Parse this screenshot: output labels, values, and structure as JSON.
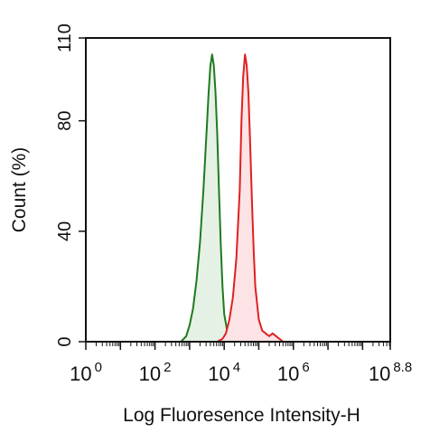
{
  "chart_data": {
    "type": "area",
    "xlabel": "Log Fluoresence Intensity-H",
    "ylabel": "Count  (%)",
    "x_scale": "log10",
    "xlim": [
      0,
      8.8
    ],
    "ylim": [
      0,
      110
    ],
    "x_ticks": [
      {
        "value": 0,
        "base": "10",
        "exp": "0"
      },
      {
        "value": 2,
        "base": "10",
        "exp": "2"
      },
      {
        "value": 4,
        "base": "10",
        "exp": "4"
      },
      {
        "value": 6,
        "base": "10",
        "exp": "6"
      },
      {
        "value": 8.8,
        "base": "10",
        "exp": "8.8"
      }
    ],
    "y_ticks": [
      "0",
      "40",
      "80",
      "110"
    ],
    "grid": false,
    "legend": "none",
    "series": [
      {
        "color": "#1f7a1f",
        "fill": "#e6f1e6",
        "x": [
          2.75,
          2.9,
          3.0,
          3.1,
          3.2,
          3.3,
          3.4,
          3.5,
          3.55,
          3.6,
          3.65,
          3.7,
          3.75,
          3.8,
          3.85,
          3.9,
          3.95,
          4.0,
          4.1,
          4.2
        ],
        "y": [
          0,
          2,
          6,
          12,
          22,
          36,
          55,
          78,
          90,
          100,
          104,
          100,
          90,
          75,
          55,
          35,
          20,
          10,
          3,
          0
        ]
      },
      {
        "color": "#e02020",
        "fill": "#fbe3e6",
        "x": [
          3.8,
          3.95,
          4.05,
          4.15,
          4.25,
          4.35,
          4.45,
          4.5,
          4.55,
          4.6,
          4.65,
          4.7,
          4.75,
          4.8,
          4.85,
          4.9,
          5.0,
          5.1,
          5.2,
          5.3,
          5.4,
          5.5,
          5.6,
          5.7
        ],
        "y": [
          0,
          1,
          3,
          8,
          16,
          30,
          55,
          80,
          96,
          104,
          100,
          90,
          72,
          52,
          34,
          20,
          8,
          4,
          3,
          2,
          3,
          2,
          1,
          0
        ]
      }
    ]
  }
}
